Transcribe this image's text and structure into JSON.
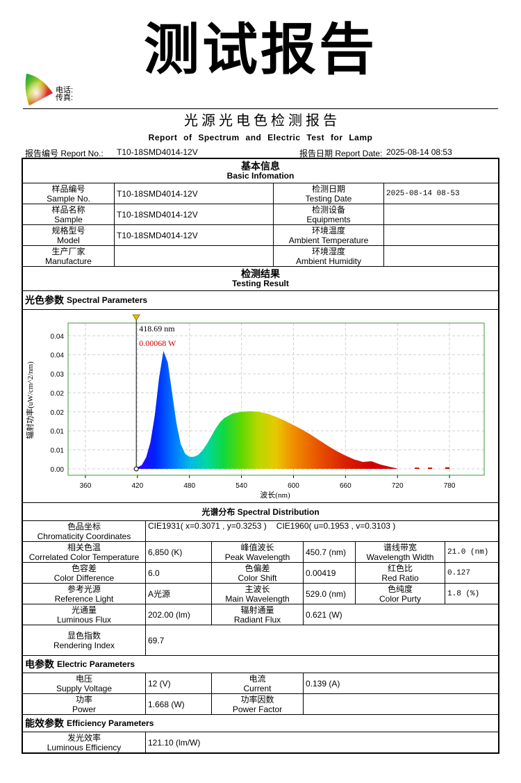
{
  "header": {
    "title": "测试报告",
    "phone": "电话:",
    "fax": "传真:"
  },
  "report": {
    "title": "光 源 光 电 色 检 测 报 告",
    "subtitle": "Report of Spectrum and Electric Test for Lamp",
    "no_label": "报告编号 Report No.:",
    "no": "T10-18SMD4014-12V",
    "date_label": "报告日期 Report Date:",
    "date": "2025-08-14 08:53"
  },
  "basic": {
    "title_zh": "基本信息",
    "title_en": "Basic Infomation",
    "rows": [
      {
        "label": {
          "zh": "样品编号",
          "en": "Sample No."
        },
        "value": "T10-18SMD4014-12V",
        "label2": {
          "zh": "检测日期",
          "en": "Testing Date"
        },
        "value2": "2025-08-14 08-53"
      },
      {
        "label": {
          "zh": "样品名称",
          "en": "Sample"
        },
        "value": "T10-18SMD4014-12V",
        "label2": {
          "zh": "检测设备",
          "en": "Equipments"
        }
      },
      {
        "label": {
          "zh": "规格型号",
          "en": "Model"
        },
        "value": "T10-18SMD4014-12V",
        "label2": {
          "zh": "环境温度",
          "en": "Ambient Temperature"
        }
      },
      {
        "label": {
          "zh": "生产厂家",
          "en": "Manufacture"
        },
        "label2": {
          "zh": "环境湿度",
          "en": "Ambient Humidity"
        }
      }
    ]
  },
  "result": {
    "title_zh": "检测结果",
    "title_en": "Testing Result"
  },
  "spectral": {
    "heading_zh": "光色参数",
    "heading_en": "Spectral Parameters",
    "distribution": "光谱分布 Spectral Distribution",
    "params": [
      {
        "zh": "色品坐标",
        "en": "Chromaticity Coordinates",
        "value": [
          "CIE1931( x=0.3071 , y=0.3253 )",
          "CIE1960( u=0.1953 , v=0.3103 )"
        ]
      },
      {
        "zh": "相关色温",
        "en": "Correlated Color Temperature",
        "value": "6,850 (K)"
      },
      {
        "zh": "峰值波长",
        "en": "Peak Wavelength",
        "value": "450.7 (nm)"
      },
      {
        "zh": "谱线带宽",
        "en": "Wavelength Width",
        "value": "21.0 (nm)"
      },
      {
        "zh": "色容差",
        "en": "Color Difference",
        "value": "6.0"
      },
      {
        "zh": "色偏差",
        "en": "Color Shift",
        "value": "0.00419"
      },
      {
        "zh": "红色比",
        "en": "Red Ratio",
        "value": "0.127"
      },
      {
        "zh": "参考光源",
        "en": "Reference Light",
        "value": "A光源"
      },
      {
        "zh": "主波长",
        "en": "Main Wavelength",
        "value": "529.0 (nm)"
      },
      {
        "zh": "色纯度",
        "en": "Color Purty",
        "value": "1.8 (%)"
      },
      {
        "zh": "光通量",
        "en": "Luminous Flux",
        "value": "202.00 (lm)"
      },
      {
        "zh": "辐射通量",
        "en": "Radiant Flux",
        "value": "0.621 (W)"
      },
      {
        "zh": "显色指数",
        "en": "Rendering Index",
        "value": "69.7"
      }
    ]
  },
  "electric": {
    "heading_zh": "电参数",
    "heading_en": "Electric Parameters",
    "params": [
      {
        "zh": "电压",
        "en": "Supply Voltage",
        "value": "12 (V)"
      },
      {
        "zh": "电流",
        "en": "Current",
        "value": "0.139 (A)"
      },
      {
        "zh": "功率",
        "en": "Power",
        "value": "1.668 (W)"
      },
      {
        "zh": "功率因数",
        "en": "Power Factor"
      }
    ]
  },
  "efficiency": {
    "heading_zh": "能效参数",
    "heading_en": "Efficiency Parameters",
    "params": [
      {
        "zh": "发光效率",
        "en": "Luminous Efficiency",
        "value": "121.10 (lm/W)"
      }
    ]
  },
  "chart_data": {
    "type": "area",
    "x_label": "波长(nm)",
    "y_label": "辐射功率(uW/cm^2/nm)",
    "x": [
      418,
      425,
      430,
      435,
      440,
      445,
      450,
      455,
      460,
      465,
      470,
      475,
      480,
      485,
      490,
      495,
      500,
      505,
      510,
      515,
      520,
      525,
      530,
      540,
      550,
      560,
      570,
      580,
      590,
      600,
      610,
      620,
      630,
      640,
      650,
      660,
      670,
      680,
      690,
      700,
      710,
      720,
      730,
      740,
      745,
      750,
      755,
      760,
      765,
      775,
      780
    ],
    "values": [
      0.0002,
      0.0012,
      0.0036,
      0.0084,
      0.0168,
      0.0288,
      0.0372,
      0.0336,
      0.024,
      0.0144,
      0.0078,
      0.0048,
      0.0038,
      0.0038,
      0.0044,
      0.0058,
      0.0078,
      0.0102,
      0.0126,
      0.0146,
      0.016,
      0.0168,
      0.0175,
      0.018,
      0.0182,
      0.018,
      0.0174,
      0.0164,
      0.0152,
      0.0138,
      0.0124,
      0.0108,
      0.009,
      0.0072,
      0.0056,
      0.0042,
      0.003,
      0.0022,
      0.0024,
      0.0014,
      0.0007,
      0.0001,
      null,
      0.0004,
      0.0004,
      null,
      0.0004,
      0.0004,
      null,
      0.0005,
      0.0005
    ],
    "xlim": [
      340,
      820
    ],
    "xticks": [
      360,
      420,
      480,
      540,
      600,
      660,
      720,
      780
    ],
    "ylim": [
      -0.002,
      0.046
    ],
    "yticks": [
      {
        "value": 0,
        "label": "0.00"
      },
      {
        "value": 0.006,
        "label": "0.01"
      },
      {
        "value": 0.012,
        "label": "0.01"
      },
      {
        "value": 0.018,
        "label": "0.02"
      },
      {
        "value": 0.024,
        "label": "0.02"
      },
      {
        "value": 0.03,
        "label": "0.03"
      },
      {
        "value": 0.036,
        "label": "0.04"
      },
      {
        "value": 0.042,
        "label": "0.04"
      }
    ],
    "grid": true,
    "cursor": {
      "x": 418.69,
      "x_label": "418.69 nm",
      "value_label": "0.00068 W"
    }
  }
}
